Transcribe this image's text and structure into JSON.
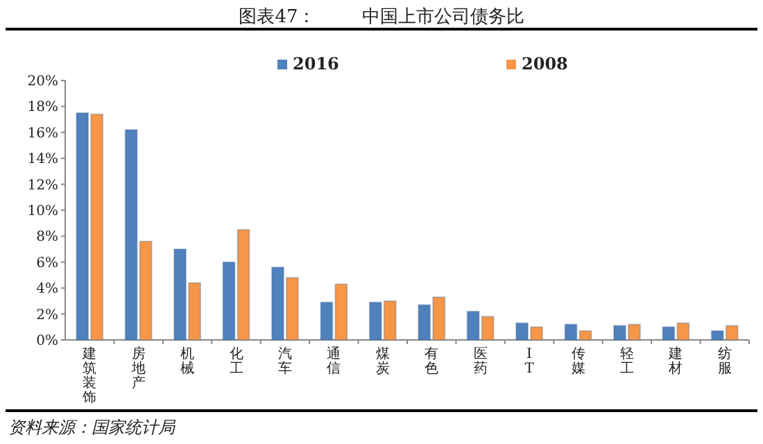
{
  "chart_data": {
    "type": "bar",
    "title": "图表47：        中国上市公司债务比",
    "categories": [
      "建筑装饰",
      "房地产",
      "机械",
      "化工",
      "汽车",
      "通信",
      "煤炭",
      "有色",
      "医药",
      "IT",
      "传媒",
      "轻工",
      "建材",
      "纺服"
    ],
    "series": [
      {
        "name": "2016",
        "color": "#4f81bd",
        "values": [
          17.5,
          16.2,
          7.0,
          6.0,
          5.6,
          2.9,
          2.9,
          2.7,
          2.2,
          1.3,
          1.2,
          1.1,
          1.0,
          0.7
        ]
      },
      {
        "name": "2008",
        "color": "#f79646",
        "values": [
          17.4,
          7.6,
          4.4,
          8.5,
          4.8,
          4.3,
          3.0,
          3.3,
          1.8,
          1.0,
          0.7,
          1.2,
          1.3,
          1.1
        ]
      }
    ],
    "ylim": [
      0,
      20
    ],
    "yticks": [
      {
        "value": 0,
        "label": "0%"
      },
      {
        "value": 2,
        "label": "2%"
      },
      {
        "value": 4,
        "label": "4%"
      },
      {
        "value": 6,
        "label": "6%"
      },
      {
        "value": 8,
        "label": "8%"
      },
      {
        "value": 10,
        "label": "10%"
      },
      {
        "value": 12,
        "label": "12%"
      },
      {
        "value": 14,
        "label": "14%"
      },
      {
        "value": 16,
        "label": "16%"
      },
      {
        "value": 18,
        "label": "18%"
      },
      {
        "value": 20,
        "label": "20%"
      }
    ],
    "legend": "top",
    "annotations": [
      "资料来源：国家统计局"
    ]
  }
}
